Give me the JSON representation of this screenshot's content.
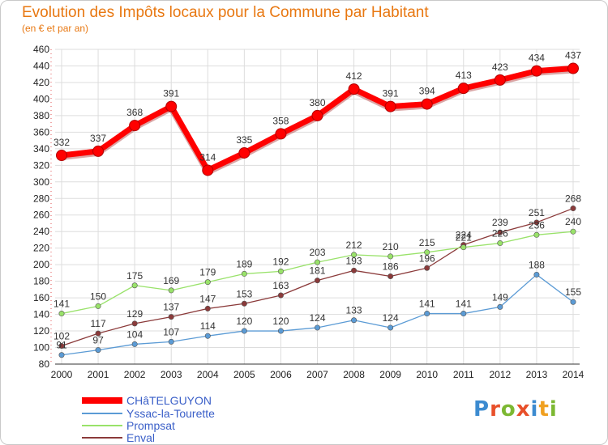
{
  "header": {
    "title": "Evolution des Impôts locaux pour la Commune par Habitant",
    "subtitle": "(en € et par an)"
  },
  "logo": {
    "text": "Proxiti",
    "colors": [
      "#3c8bd0",
      "#e8502a",
      "#7cb832",
      "#e8502a",
      "#3c8bd0",
      "#f0a020",
      "#7cb832"
    ]
  },
  "chart_data": {
    "type": "line",
    "x": [
      "2000",
      "2001",
      "2002",
      "2003",
      "2004",
      "2005",
      "2006",
      "2007",
      "2008",
      "2009",
      "2010",
      "2011",
      "2012",
      "2013",
      "2014"
    ],
    "ylim": [
      80,
      460
    ],
    "yticks": [
      "80",
      "100",
      "120",
      "140",
      "160",
      "180",
      "200",
      "220",
      "240",
      "260",
      "280",
      "300",
      "320",
      "340",
      "360",
      "380",
      "400",
      "420",
      "440",
      "460"
    ],
    "grid": true,
    "legend_placement": "bottom-left",
    "series": [
      {
        "name": "CHâTELGUYON",
        "color": "#ff0000",
        "values": [
          332,
          337,
          368,
          391,
          314,
          335,
          358,
          380,
          412,
          391,
          394,
          413,
          423,
          434,
          437
        ],
        "labels": [
          "332",
          "337",
          "368",
          "391",
          "314",
          "335",
          "358",
          "380",
          "412",
          "391",
          "394",
          "413",
          "423",
          "434",
          "437"
        ]
      },
      {
        "name": "Yssac-la-Tourette",
        "color": "#5b9bd5",
        "values": [
          91,
          97,
          104,
          107,
          114,
          120,
          120,
          124,
          133,
          124,
          141,
          141,
          149,
          188,
          155
        ],
        "labels": [
          "91",
          "97",
          "104",
          "107",
          "114",
          "120",
          "120",
          "124",
          "133",
          "124",
          "141",
          "141",
          "149",
          "188",
          "155"
        ]
      },
      {
        "name": "Prompsat",
        "color": "#99e26a",
        "values": [
          141,
          150,
          175,
          169,
          179,
          189,
          192,
          203,
          212,
          210,
          215,
          221,
          226,
          236,
          240
        ],
        "labels": [
          "141",
          "150",
          "175",
          "169",
          "179",
          "189",
          "192",
          "203",
          "212",
          "210",
          "215",
          "221",
          "226",
          "236",
          "240"
        ]
      },
      {
        "name": "Enval",
        "color": "#8b3a3a",
        "values": [
          102,
          117,
          129,
          137,
          147,
          153,
          163,
          181,
          193,
          186,
          196,
          224,
          239,
          251,
          268
        ],
        "labels": [
          "102",
          "117",
          "129",
          "137",
          "147",
          "153",
          "163",
          "181",
          "193",
          "186",
          "196",
          "224",
          "239",
          "251",
          "268"
        ]
      }
    ]
  }
}
